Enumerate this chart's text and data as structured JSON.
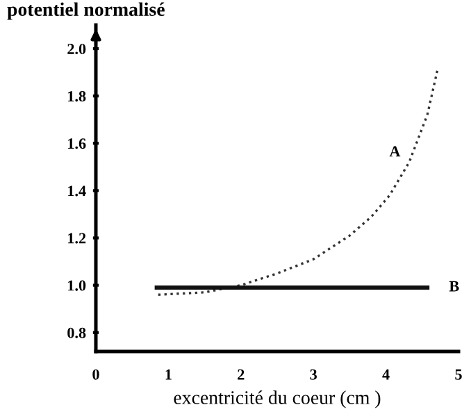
{
  "chart_data": {
    "type": "line",
    "ylabel": "potentiel normalisé",
    "xlabel": "excentricité du coeur (cm )",
    "xlim": [
      0,
      5
    ],
    "ylim": [
      0.72,
      2.1
    ],
    "xticks": [
      0,
      1,
      2,
      3,
      4,
      5
    ],
    "yticks": [
      {
        "value": 0.8,
        "label": "0.8"
      },
      {
        "value": 1.0,
        "label": "1.0"
      },
      {
        "value": 1.2,
        "label": "1.2"
      },
      {
        "value": 1.4,
        "label": "1.4"
      },
      {
        "value": 1.6,
        "label": "1.6"
      },
      {
        "value": 1.8,
        "label": "1.8"
      },
      {
        "value": 2.0,
        "label": "2.0"
      }
    ],
    "grid": false,
    "legend": false,
    "series": [
      {
        "name": "A",
        "color": "#333333",
        "line_style": "dotted",
        "x": [
          0.86,
          1.5,
          2.0,
          2.5,
          3.0,
          3.5,
          3.8,
          4.05,
          4.32,
          4.57,
          4.71
        ],
        "values": [
          0.96,
          0.97,
          1.0,
          1.05,
          1.11,
          1.21,
          1.29,
          1.38,
          1.52,
          1.72,
          1.91
        ]
      },
      {
        "name": "B",
        "color": "#111111",
        "line_style": "solid",
        "x": [
          0.84,
          4.57
        ],
        "values": [
          0.99,
          0.99
        ]
      }
    ]
  }
}
